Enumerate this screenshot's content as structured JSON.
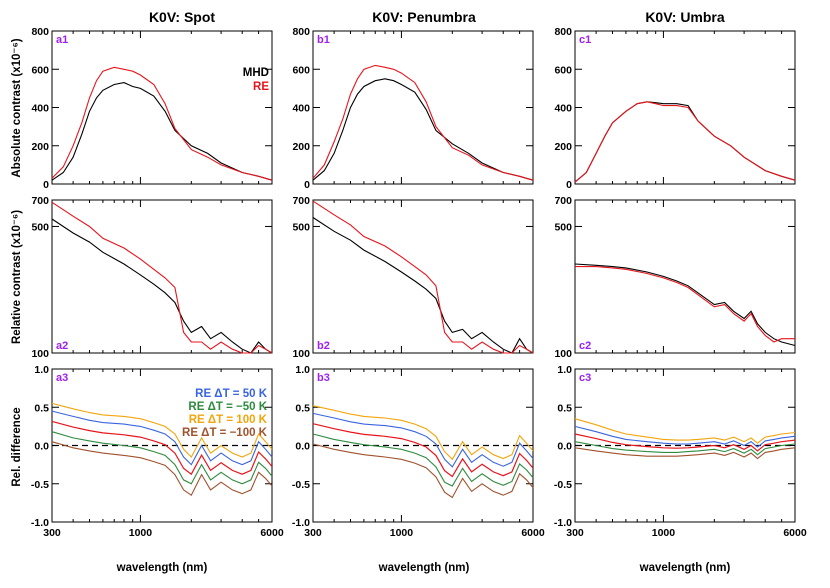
{
  "colors": {
    "mhd": "#000000",
    "re": "#e8141c",
    "re_p50": "#3a64e0",
    "re_m50": "#2e8b3e",
    "re_p100": "#f2a50c",
    "re_m100": "#a0522d",
    "panel_label": "#a020f0"
  },
  "columns": [
    {
      "title": "K0V: Spot"
    },
    {
      "title": "K0V: Penumbra"
    },
    {
      "title": "K0V: Umbra"
    }
  ],
  "row_ylabels": [
    "Absolute contrast (x10⁻⁶)",
    "Relative contrast (x10⁻⁶)",
    "Rel. difference"
  ],
  "xlabel": "wavelength (nm)",
  "panel_labels": [
    [
      "a1",
      "b1",
      "c1"
    ],
    [
      "a2",
      "b2",
      "c2"
    ],
    [
      "a3",
      "b3",
      "c3"
    ]
  ],
  "legend_top": {
    "mhd": "MHD",
    "re": "RE"
  },
  "legend_bottom": [
    "RE ΔT = 50 K",
    "RE ΔT = −50 K",
    "RE ΔT = 100 K",
    "RE ΔT = −100 K"
  ],
  "chart_data": [
    {
      "type": "line",
      "row": "absolute",
      "xscale": "log",
      "xlim": [
        300,
        6000
      ],
      "ylim": [
        0,
        800
      ],
      "xticks": [
        300,
        1000,
        6000
      ],
      "yticks": [
        0,
        200,
        400,
        600,
        800
      ],
      "series": {
        "spot": {
          "x": [
            300,
            350,
            400,
            450,
            500,
            550,
            600,
            700,
            800,
            900,
            1000,
            1200,
            1400,
            1600,
            2000,
            2500,
            3000,
            4000,
            5000,
            6000
          ],
          "MHD": [
            20,
            60,
            140,
            260,
            380,
            450,
            490,
            520,
            530,
            510,
            500,
            460,
            380,
            280,
            200,
            160,
            110,
            60,
            40,
            20
          ],
          "RE": [
            30,
            90,
            200,
            320,
            450,
            540,
            590,
            610,
            600,
            590,
            570,
            520,
            420,
            290,
            180,
            140,
            100,
            60,
            40,
            20
          ]
        },
        "penumbra": {
          "x": [
            300,
            350,
            400,
            450,
            500,
            550,
            600,
            700,
            800,
            900,
            1000,
            1200,
            1400,
            1600,
            2000,
            2500,
            3000,
            4000,
            5000,
            6000
          ],
          "MHD": [
            20,
            70,
            160,
            280,
            400,
            470,
            510,
            540,
            550,
            540,
            520,
            480,
            390,
            280,
            210,
            160,
            110,
            60,
            40,
            20
          ],
          "RE": [
            30,
            100,
            220,
            340,
            470,
            550,
            600,
            620,
            610,
            600,
            580,
            530,
            430,
            300,
            190,
            150,
            100,
            60,
            40,
            20
          ]
        },
        "umbra": {
          "x": [
            300,
            350,
            400,
            450,
            500,
            600,
            700,
            800,
            900,
            1000,
            1200,
            1400,
            1600,
            2000,
            2500,
            3000,
            4000,
            5000,
            6000
          ],
          "MHD": [
            10,
            60,
            160,
            250,
            320,
            380,
            420,
            430,
            425,
            420,
            420,
            410,
            330,
            250,
            200,
            140,
            70,
            40,
            20
          ],
          "RE": [
            10,
            60,
            160,
            250,
            320,
            380,
            420,
            430,
            420,
            410,
            410,
            400,
            330,
            250,
            200,
            140,
            70,
            40,
            20
          ]
        }
      }
    },
    {
      "type": "line",
      "row": "relative",
      "xscale": "log",
      "yscale": "log",
      "xlim": [
        300,
        6000
      ],
      "ylim": [
        100,
        700
      ],
      "xticks": [
        300,
        1000,
        6000
      ],
      "yticks": [
        100,
        500,
        700
      ],
      "series": {
        "spot": {
          "x": [
            300,
            400,
            500,
            600,
            800,
            1000,
            1200,
            1400,
            1600,
            1800,
            2000,
            2300,
            2600,
            3000,
            3500,
            4000,
            4500,
            5000,
            5500,
            6000
          ],
          "MHD": [
            550,
            460,
            410,
            360,
            310,
            270,
            240,
            215,
            190,
            150,
            130,
            140,
            120,
            130,
            115,
            105,
            100,
            115,
            105,
            100
          ],
          "RE": [
            680,
            570,
            500,
            430,
            380,
            330,
            290,
            260,
            230,
            130,
            115,
            115,
            105,
            115,
            105,
            100,
            100,
            110,
            105,
            100
          ]
        },
        "penumbra": {
          "x": [
            300,
            400,
            500,
            600,
            800,
            1000,
            1200,
            1400,
            1600,
            1800,
            2000,
            2300,
            2600,
            3000,
            3500,
            4000,
            4500,
            5000,
            5500,
            6000
          ],
          "MHD": [
            560,
            470,
            420,
            370,
            320,
            280,
            250,
            225,
            200,
            150,
            130,
            135,
            120,
            130,
            115,
            105,
            100,
            120,
            105,
            100
          ],
          "RE": [
            690,
            580,
            510,
            440,
            390,
            340,
            300,
            270,
            235,
            130,
            115,
            115,
            105,
            115,
            105,
            100,
            100,
            110,
            105,
            100
          ]
        },
        "umbra": {
          "x": [
            300,
            400,
            500,
            600,
            800,
            1000,
            1200,
            1400,
            1600,
            2000,
            2300,
            2600,
            3000,
            3300,
            3600,
            4000,
            4500,
            5000,
            6000
          ],
          "MHD": [
            310,
            305,
            300,
            295,
            280,
            265,
            250,
            235,
            215,
            185,
            190,
            170,
            155,
            170,
            145,
            130,
            120,
            115,
            110
          ],
          "RE": [
            300,
            300,
            295,
            290,
            275,
            260,
            245,
            230,
            210,
            180,
            185,
            165,
            150,
            165,
            140,
            125,
            115,
            120,
            120
          ]
        }
      }
    },
    {
      "type": "line",
      "row": "difference",
      "xscale": "log",
      "xlim": [
        300,
        6000
      ],
      "ylim": [
        -1.0,
        1.0
      ],
      "xticks": [
        300,
        1000,
        6000
      ],
      "yticks": [
        -1.0,
        -0.5,
        0.0,
        0.5,
        1.0
      ],
      "zero_line": "dashed",
      "series": {
        "spot": {
          "x": [
            300,
            400,
            500,
            600,
            800,
            1000,
            1200,
            1400,
            1600,
            1800,
            2000,
            2300,
            2600,
            3000,
            3500,
            4000,
            4500,
            5000,
            5500,
            6000
          ],
          "RE_dT_50": [
            0.45,
            0.38,
            0.33,
            0.3,
            0.28,
            0.25,
            0.2,
            0.15,
            0.05,
            -0.15,
            -0.25,
            0.0,
            -0.2,
            -0.1,
            -0.2,
            -0.25,
            -0.2,
            0.05,
            -0.05,
            -0.15
          ],
          "RE_dT_m50": [
            0.18,
            0.1,
            0.06,
            0.03,
            0.0,
            -0.03,
            -0.08,
            -0.13,
            -0.25,
            -0.45,
            -0.5,
            -0.25,
            -0.45,
            -0.35,
            -0.45,
            -0.5,
            -0.45,
            -0.22,
            -0.3,
            -0.4
          ],
          "RE_dT_100": [
            0.55,
            0.48,
            0.43,
            0.4,
            0.38,
            0.35,
            0.3,
            0.25,
            0.15,
            -0.05,
            -0.15,
            0.1,
            -0.1,
            0.0,
            -0.1,
            -0.15,
            -0.1,
            0.15,
            0.05,
            -0.05
          ],
          "RE_dT_m100": [
            0.05,
            -0.03,
            -0.07,
            -0.1,
            -0.13,
            -0.16,
            -0.21,
            -0.26,
            -0.38,
            -0.58,
            -0.65,
            -0.38,
            -0.58,
            -0.48,
            -0.58,
            -0.63,
            -0.58,
            -0.35,
            -0.43,
            -0.53
          ]
        },
        "penumbra": {
          "x": [
            300,
            400,
            500,
            600,
            800,
            1000,
            1200,
            1400,
            1600,
            1800,
            2000,
            2300,
            2600,
            3000,
            3500,
            4000,
            4500,
            5000,
            5500,
            6000
          ],
          "RE_dT_50": [
            0.42,
            0.36,
            0.31,
            0.28,
            0.26,
            0.23,
            0.18,
            0.12,
            0.02,
            -0.18,
            -0.28,
            -0.05,
            -0.22,
            -0.12,
            -0.22,
            -0.27,
            -0.22,
            0.03,
            -0.07,
            -0.17
          ],
          "RE_dT_m50": [
            0.15,
            0.08,
            0.04,
            0.01,
            -0.02,
            -0.05,
            -0.1,
            -0.16,
            -0.28,
            -0.48,
            -0.53,
            -0.3,
            -0.47,
            -0.37,
            -0.47,
            -0.52,
            -0.47,
            -0.24,
            -0.32,
            -0.42
          ],
          "RE_dT_100": [
            0.52,
            0.46,
            0.41,
            0.38,
            0.36,
            0.33,
            0.28,
            0.22,
            0.12,
            -0.08,
            -0.18,
            0.05,
            -0.12,
            -0.02,
            -0.12,
            -0.17,
            -0.12,
            0.13,
            0.03,
            -0.07
          ],
          "RE_dT_m100": [
            0.02,
            -0.05,
            -0.09,
            -0.12,
            -0.15,
            -0.18,
            -0.23,
            -0.29,
            -0.41,
            -0.61,
            -0.68,
            -0.43,
            -0.6,
            -0.5,
            -0.6,
            -0.65,
            -0.6,
            -0.37,
            -0.45,
            -0.55
          ]
        },
        "umbra": {
          "x": [
            300,
            400,
            500,
            600,
            800,
            1000,
            1200,
            1400,
            1600,
            2000,
            2300,
            2600,
            3000,
            3300,
            3600,
            4000,
            4500,
            5000,
            6000
          ],
          "RE_dT_50": [
            0.25,
            0.18,
            0.12,
            0.08,
            0.05,
            0.03,
            0.02,
            0.02,
            0.03,
            0.05,
            0.02,
            0.06,
            0.0,
            0.05,
            -0.02,
            0.06,
            0.08,
            0.1,
            0.12
          ],
          "RE_dT_m50": [
            0.05,
            0.0,
            -0.04,
            -0.06,
            -0.08,
            -0.09,
            -0.09,
            -0.08,
            -0.07,
            -0.05,
            -0.08,
            -0.04,
            -0.1,
            -0.05,
            -0.12,
            -0.04,
            -0.02,
            0.0,
            0.02
          ],
          "RE_dT_100": [
            0.35,
            0.27,
            0.2,
            0.15,
            0.11,
            0.08,
            0.07,
            0.07,
            0.08,
            0.1,
            0.07,
            0.11,
            0.05,
            0.1,
            0.03,
            0.11,
            0.13,
            0.15,
            0.17
          ],
          "RE_dT_m100": [
            -0.03,
            -0.07,
            -0.1,
            -0.12,
            -0.14,
            -0.14,
            -0.14,
            -0.13,
            -0.12,
            -0.1,
            -0.13,
            -0.09,
            -0.15,
            -0.1,
            -0.17,
            -0.09,
            -0.07,
            -0.05,
            -0.03
          ]
        }
      }
    }
  ]
}
